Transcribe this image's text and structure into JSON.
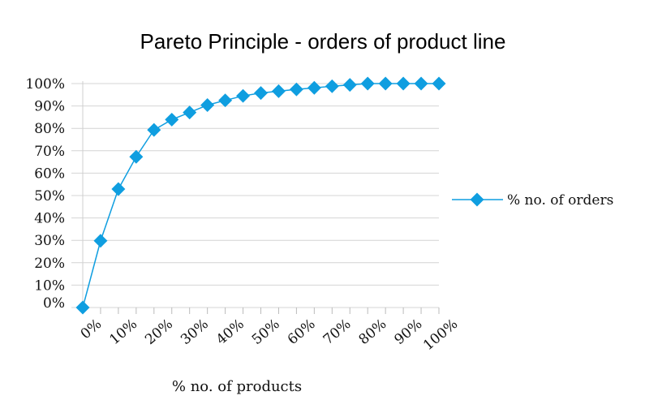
{
  "chart_data": {
    "type": "line",
    "title": "Pareto Principle - orders of product line",
    "xlabel": "% no. of products",
    "ylabel": "",
    "x": [
      0,
      5,
      10,
      15,
      20,
      25,
      30,
      35,
      40,
      45,
      50,
      55,
      60,
      65,
      70,
      75,
      80,
      85,
      90,
      95,
      100
    ],
    "series": [
      {
        "name": "% no. of orders",
        "color": "#0f9ee0",
        "marker": "diamond",
        "values": [
          0,
          29.8,
          52.9,
          67.3,
          79.3,
          83.9,
          87.1,
          90.4,
          92.5,
          94.5,
          95.8,
          96.6,
          97.4,
          98.1,
          98.8,
          99.4,
          100,
          100,
          100,
          100,
          100
        ]
      }
    ],
    "xlim": [
      0,
      100
    ],
    "ylim": [
      0,
      100
    ],
    "x_tick_labels": [
      "0%",
      "10%",
      "20%",
      "30%",
      "40%",
      "50%",
      "60%",
      "70%",
      "80%",
      "90%",
      "100%"
    ],
    "y_tick_labels": [
      "0%",
      "10%",
      "20%",
      "30%",
      "40%",
      "50%",
      "60%",
      "70%",
      "80%",
      "90%",
      "100%"
    ],
    "grid": "horizontal",
    "legend_position": "right"
  }
}
